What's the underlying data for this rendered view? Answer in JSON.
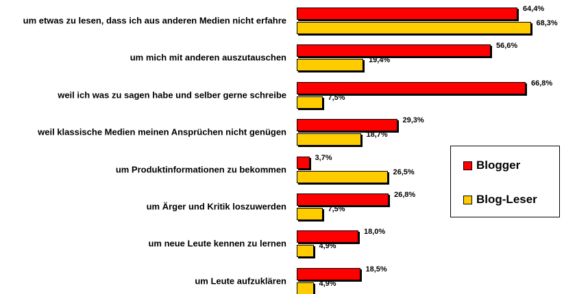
{
  "chart_data": {
    "type": "bar",
    "orientation": "horizontal",
    "categories": [
      "um etwas zu lesen, dass ich aus anderen Medien nicht erfahre",
      "um mich mit anderen auszutauschen",
      "weil ich was zu sagen habe und selber gerne schreibe",
      "weil klassische Medien meinen Ansprüchen nicht genügen",
      "um Produktinformationen zu bekommen",
      "um Ärger und Kritik loszuwerden",
      "um neue Leute kennen zu lernen",
      "um Leute aufzuklären"
    ],
    "series": [
      {
        "name": "Blogger",
        "color": "#ff0000",
        "values": [
          64.4,
          56.6,
          66.8,
          29.3,
          3.7,
          26.8,
          18.0,
          18.5
        ],
        "value_labels": [
          "64,4%",
          "56,6%",
          "66,8%",
          "29,3%",
          "3,7%",
          "26,8%",
          "18,0%",
          "18,5%"
        ]
      },
      {
        "name": "Blog-Leser",
        "color": "#ffcc00",
        "values": [
          68.3,
          19.4,
          7.5,
          18.7,
          26.5,
          7.5,
          4.9,
          4.9
        ],
        "value_labels": [
          "68,3%",
          "19,4%",
          "7,5%",
          "18,7%",
          "26,5%",
          "7,5%",
          "4,9%",
          "4,9%"
        ]
      }
    ],
    "legend": "right"
  }
}
